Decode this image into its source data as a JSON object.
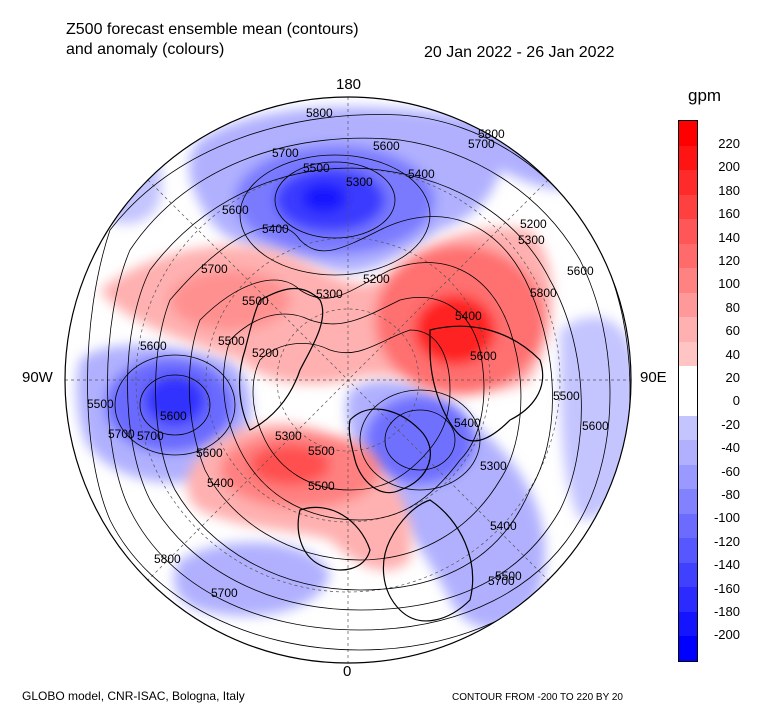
{
  "title_line1": "Z500 forecast ensemble mean (contours)",
  "title_line2": "and anomaly (colours)",
  "date_range": "20 Jan 2022 - 26 Jan 2022",
  "lon_labels": {
    "top": "180",
    "bottom": "0",
    "left": "90W",
    "right": "90E"
  },
  "unit": "gpm",
  "colorbar": {
    "ticks": [
      "220",
      "200",
      "180",
      "160",
      "140",
      "120",
      "100",
      "80",
      "60",
      "40",
      "20",
      "0",
      "-20",
      "-40",
      "-60",
      "-80",
      "-100",
      "-120",
      "-140",
      "-160",
      "-180",
      "-200"
    ],
    "colors": [
      "#ff0000",
      "#ff1414",
      "#ff2b2b",
      "#ff4040",
      "#ff5757",
      "#ff6b6b",
      "#ff8282",
      "#ff9999",
      "#ffb0b0",
      "#ffc4c4",
      "#ffffff",
      "#ffffff",
      "#c4c4ff",
      "#b0b0ff",
      "#9999ff",
      "#8282ff",
      "#6b6bff",
      "#5757ff",
      "#4040ff",
      "#2b2bff",
      "#1414ff",
      "#0000ff"
    ]
  },
  "contour_labels": [
    "5800",
    "5700",
    "5600",
    "5500",
    "5300",
    "5400",
    "5600",
    "5700",
    "5800",
    "5400",
    "5200",
    "5300",
    "5500",
    "5700",
    "5600",
    "5500",
    "5400",
    "5300",
    "5200",
    "5200",
    "5300",
    "5500",
    "5600",
    "5400",
    "5500",
    "5600",
    "5700",
    "5800",
    "5700",
    "5800",
    "5600",
    "5500",
    "5400",
    "5300",
    "5400",
    "5500",
    "5600",
    "5700",
    "5500",
    "5600",
    "5700"
  ],
  "footer_left": "GLOBO model, CNR-ISAC, Bologna, Italy",
  "footer_right": "CONTOUR FROM -200 TO 220 BY 20"
}
